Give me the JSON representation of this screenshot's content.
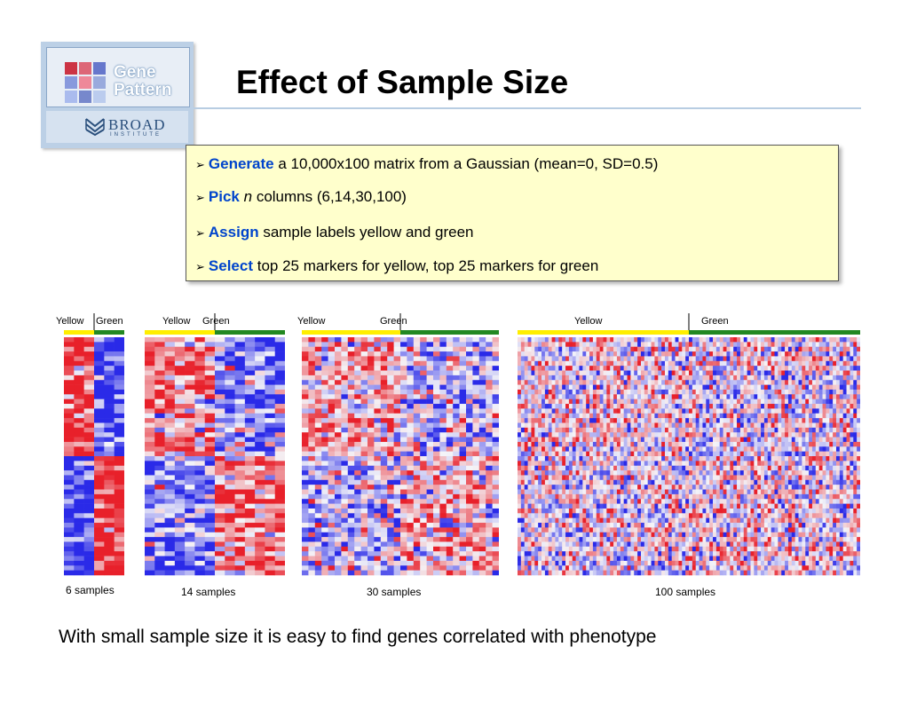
{
  "logo": {
    "gene_line1": "Gene",
    "gene_line2": "Pattern",
    "broad": "BROAD",
    "institute": "INSTITUTE",
    "grid_colors": [
      "#cc3344",
      "#dd6677",
      "#6677cc",
      "#8899dd",
      "#ee8899",
      "#99aadd",
      "#aabbee",
      "#7788cc",
      "#bbccee"
    ]
  },
  "title": "Effect of Sample Size",
  "bullets": [
    {
      "keyword": "Generate",
      "text_before": "",
      "text": " a 10,000x100 matrix from a Gaussian (mean=0, SD=0.5)"
    },
    {
      "keyword": "Pick",
      "italic": "n",
      "text": " columns (6,14,30,100)"
    },
    {
      "keyword": "Assign",
      "text": " sample labels yellow and green"
    },
    {
      "keyword": "Select",
      "text": " top 25 markers for yellow, top 25 markers for green"
    }
  ],
  "heatmaps": [
    {
      "yellow_label": "Yellow",
      "green_label": "Green",
      "caption": "6 samples",
      "n": 6,
      "rows": 50
    },
    {
      "yellow_label": "Yellow",
      "green_label": "Green",
      "caption": "14 samples",
      "n": 14,
      "rows": 50
    },
    {
      "yellow_label": "Yellow",
      "green_label": "Green",
      "caption": "30 samples",
      "n": 30,
      "rows": 50
    },
    {
      "yellow_label": "Yellow",
      "green_label": "Green",
      "caption": "100 samples",
      "n": 100,
      "rows": 50
    }
  ],
  "colors": {
    "yellow": "#ffee00",
    "green": "#228822",
    "high": "#e8202a",
    "low": "#2a2ae8",
    "mid": "#f4f4f8",
    "box": "#ffffcc",
    "keyword": "#0044cc"
  },
  "footer": "With small sample size it is easy to find genes correlated with phenotype"
}
